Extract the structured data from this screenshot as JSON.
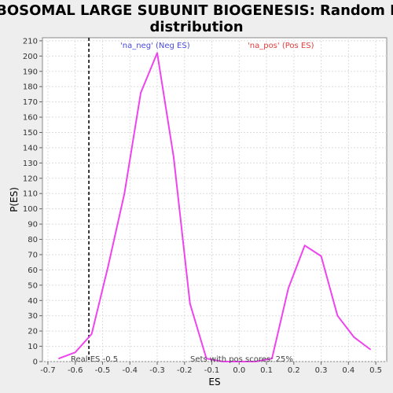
{
  "chart_data": {
    "type": "line",
    "title": "RIBOSOMAL LARGE SUBUNIT BIOGENESIS: Random ES distribution",
    "title_lines": [
      "RIBOSOMAL LARGE SUBUNIT BIOGENESIS: Random ES",
      "distribution"
    ],
    "xlabel": "ES",
    "ylabel": "P(ES)",
    "xlim": [
      -0.72,
      0.54
    ],
    "ylim": [
      0,
      212
    ],
    "x_ticks": [
      -0.7,
      -0.6,
      -0.5,
      -0.4,
      -0.3,
      -0.2,
      -0.1,
      0.0,
      0.1,
      0.2,
      0.3,
      0.4,
      0.5
    ],
    "x_tick_labels": [
      "-0.7",
      "-0.6",
      "-0.5",
      "-0.4",
      "-0.3",
      "-0.2",
      "-0.1",
      "0.0",
      "0.1",
      "0.2",
      "0.3",
      "0.4",
      "0.5"
    ],
    "y_ticks": [
      0,
      10,
      20,
      30,
      40,
      50,
      60,
      70,
      80,
      90,
      100,
      110,
      120,
      130,
      140,
      150,
      160,
      170,
      180,
      190,
      200,
      210
    ],
    "grid": true,
    "series": [
      {
        "color": "#ee44ee",
        "x": [
          -0.66,
          -0.6,
          -0.54,
          -0.48,
          -0.42,
          -0.36,
          -0.3,
          -0.24,
          -0.18,
          -0.12,
          -0.06,
          0.0,
          0.06,
          0.12,
          0.18,
          0.24,
          0.3,
          0.36,
          0.42,
          0.48
        ],
        "y": [
          2,
          6,
          18,
          62,
          110,
          176,
          202,
          134,
          38,
          2,
          0,
          0,
          0,
          2,
          48,
          76,
          69,
          30,
          16,
          8
        ]
      }
    ],
    "vline": {
      "x": -0.55,
      "style": "dashed",
      "color": "#333333"
    },
    "annotations": {
      "legend_neg": "'na_neg' (Neg ES)",
      "legend_pos": "'na_pos' (Pos ES)",
      "real_es": "Real ES -0.5",
      "pos_scores": "Sets with pos scores: 25%"
    },
    "colors": {
      "neg_legend": "#4a4adf",
      "pos_legend": "#e03c3c",
      "line": "#ee44ee",
      "plot_bg": "#ffffff",
      "grid": "#dddddd"
    }
  }
}
